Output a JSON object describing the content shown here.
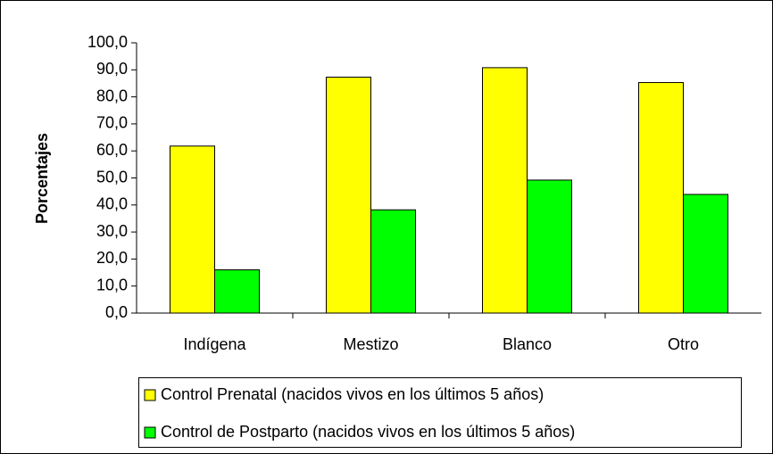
{
  "chart_data": {
    "type": "bar",
    "y_label": "Porcentajes",
    "categories": [
      "Indígena",
      "Mestizo",
      "Blanco",
      "Otro"
    ],
    "series": [
      {
        "name": "Control Prenatal (nacidos vivos en los últimos 5 años)",
        "color": "#ffff00",
        "values": [
          61.8,
          87.3,
          90.8,
          85.3
        ]
      },
      {
        "name": "Control de Postparto (nacidos vivos en los últimos 5 años)",
        "color": "#00ff00",
        "values": [
          16.0,
          38.2,
          49.2,
          43.9
        ]
      }
    ],
    "ylim": [
      0,
      100
    ],
    "yticks": [
      {
        "value": 0,
        "label": "0,0"
      },
      {
        "value": 10,
        "label": "10,0"
      },
      {
        "value": 20,
        "label": "20,0"
      },
      {
        "value": 30,
        "label": "30,0"
      },
      {
        "value": 40,
        "label": "40,0"
      },
      {
        "value": 50,
        "label": "50,0"
      },
      {
        "value": 60,
        "label": "60,0"
      },
      {
        "value": 70,
        "label": "70,0"
      },
      {
        "value": 80,
        "label": "80,0"
      },
      {
        "value": 90,
        "label": "90,0"
      },
      {
        "value": 100,
        "label": "100,0"
      }
    ],
    "grid": false,
    "legend": "bottom"
  }
}
